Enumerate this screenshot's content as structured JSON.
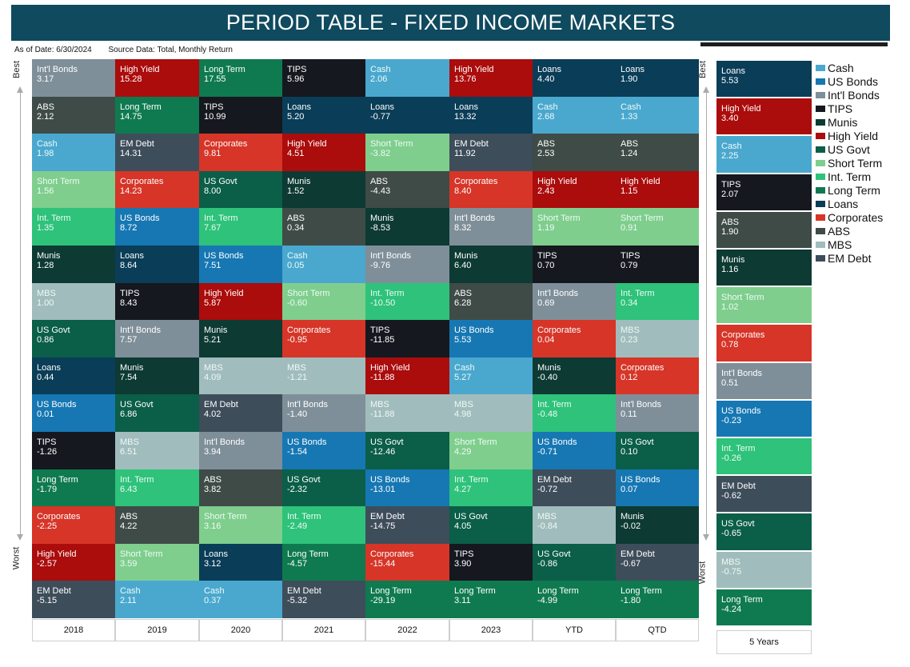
{
  "title": "PERIOD TABLE - FIXED INCOME MARKETS",
  "as_of": "As of Date: 6/30/2024",
  "source": "Source Data: Total, Monthly Return",
  "axis": {
    "best": "Best",
    "worst": "Worst"
  },
  "colors": {
    "Cash": "#4aa8cf",
    "US Bonds": "#1677b3",
    "Int'l Bonds": "#7f8f99",
    "TIPS": "#16181f",
    "Munis": "#0d3a33",
    "High Yield": "#ab0c0c",
    "US Govt": "#0b5e48",
    "Short Term": "#7fce8d",
    "Int. Term": "#2ec27a",
    "Long Term": "#0f7a4f",
    "Loans": "#0a3d57",
    "Corporates": "#d63528",
    "ABS": "#3f4b47",
    "MBS": "#a1bcbc",
    "EM Debt": "#3e4d5a"
  },
  "legend": [
    "Cash",
    "US Bonds",
    "Int'l Bonds",
    "TIPS",
    "Munis",
    "High Yield",
    "US Govt",
    "Short Term",
    "Int. Term",
    "Long Term",
    "Loans",
    "Corporates",
    "ABS",
    "MBS",
    "EM Debt"
  ],
  "chart_data": {
    "type": "table",
    "title": "PERIOD TABLE - FIXED INCOME MARKETS",
    "rank_order": "best-to-worst",
    "columns": [
      {
        "label": "2018",
        "ranking": [
          {
            "name": "Int'l Bonds",
            "value": "3.17"
          },
          {
            "name": "ABS",
            "value": "2.12"
          },
          {
            "name": "Cash",
            "value": "1.98"
          },
          {
            "name": "Short Term",
            "value": "1.56"
          },
          {
            "name": "Int. Term",
            "value": "1.35"
          },
          {
            "name": "Munis",
            "value": "1.28"
          },
          {
            "name": "MBS",
            "value": "1.00"
          },
          {
            "name": "US Govt",
            "value": "0.86"
          },
          {
            "name": "Loans",
            "value": "0.44"
          },
          {
            "name": "US Bonds",
            "value": "0.01"
          },
          {
            "name": "TIPS",
            "value": "-1.26"
          },
          {
            "name": "Long Term",
            "value": "-1.79"
          },
          {
            "name": "Corporates",
            "value": "-2.25"
          },
          {
            "name": "High Yield",
            "value": "-2.57"
          },
          {
            "name": "EM Debt",
            "value": "-5.15"
          }
        ]
      },
      {
        "label": "2019",
        "ranking": [
          {
            "name": "High Yield",
            "value": "15.28"
          },
          {
            "name": "Long Term",
            "value": "14.75"
          },
          {
            "name": "EM Debt",
            "value": "14.31"
          },
          {
            "name": "Corporates",
            "value": "14.23"
          },
          {
            "name": "US Bonds",
            "value": "8.72"
          },
          {
            "name": "Loans",
            "value": "8.64"
          },
          {
            "name": "TIPS",
            "value": "8.43"
          },
          {
            "name": "Int'l Bonds",
            "value": "7.57"
          },
          {
            "name": "Munis",
            "value": "7.54"
          },
          {
            "name": "US Govt",
            "value": "6.86"
          },
          {
            "name": "MBS",
            "value": "6.51"
          },
          {
            "name": "Int. Term",
            "value": "6.43"
          },
          {
            "name": "ABS",
            "value": "4.22"
          },
          {
            "name": "Short Term",
            "value": "3.59"
          },
          {
            "name": "Cash",
            "value": "2.11"
          }
        ]
      },
      {
        "label": "2020",
        "ranking": [
          {
            "name": "Long Term",
            "value": "17.55"
          },
          {
            "name": "TIPS",
            "value": "10.99"
          },
          {
            "name": "Corporates",
            "value": "9.81"
          },
          {
            "name": "US Govt",
            "value": "8.00"
          },
          {
            "name": "Int. Term",
            "value": "7.67"
          },
          {
            "name": "US Bonds",
            "value": "7.51"
          },
          {
            "name": "High Yield",
            "value": "5.87"
          },
          {
            "name": "Munis",
            "value": "5.21"
          },
          {
            "name": "MBS",
            "value": "4.09"
          },
          {
            "name": "EM Debt",
            "value": "4.02"
          },
          {
            "name": "Int'l Bonds",
            "value": "3.94"
          },
          {
            "name": "ABS",
            "value": "3.82"
          },
          {
            "name": "Short Term",
            "value": "3.16"
          },
          {
            "name": "Loans",
            "value": "3.12"
          },
          {
            "name": "Cash",
            "value": "0.37"
          }
        ]
      },
      {
        "label": "2021",
        "ranking": [
          {
            "name": "TIPS",
            "value": "5.96"
          },
          {
            "name": "Loans",
            "value": "5.20"
          },
          {
            "name": "High Yield",
            "value": "4.51"
          },
          {
            "name": "Munis",
            "value": "1.52"
          },
          {
            "name": "ABS",
            "value": "0.34"
          },
          {
            "name": "Cash",
            "value": "0.05"
          },
          {
            "name": "Short Term",
            "value": "-0.60"
          },
          {
            "name": "Corporates",
            "value": "-0.95"
          },
          {
            "name": "MBS",
            "value": "-1.21"
          },
          {
            "name": "Int'l Bonds",
            "value": "-1.40"
          },
          {
            "name": "US Bonds",
            "value": "-1.54"
          },
          {
            "name": "US Govt",
            "value": "-2.32"
          },
          {
            "name": "Int. Term",
            "value": "-2.49"
          },
          {
            "name": "Long Term",
            "value": "-4.57"
          },
          {
            "name": "EM Debt",
            "value": "-5.32"
          }
        ]
      },
      {
        "label": "2022",
        "ranking": [
          {
            "name": "Cash",
            "value": "2.06"
          },
          {
            "name": "Loans",
            "value": "-0.77"
          },
          {
            "name": "Short Term",
            "value": "-3.82"
          },
          {
            "name": "ABS",
            "value": "-4.43"
          },
          {
            "name": "Munis",
            "value": "-8.53"
          },
          {
            "name": "Int'l Bonds",
            "value": "-9.76"
          },
          {
            "name": "Int. Term",
            "value": "-10.50"
          },
          {
            "name": "TIPS",
            "value": "-11.85"
          },
          {
            "name": "High Yield",
            "value": "-11.88"
          },
          {
            "name": "MBS",
            "value": "-11.88"
          },
          {
            "name": "US Govt",
            "value": "-12.46"
          },
          {
            "name": "US Bonds",
            "value": "-13.01"
          },
          {
            "name": "EM Debt",
            "value": "-14.75"
          },
          {
            "name": "Corporates",
            "value": "-15.44"
          },
          {
            "name": "Long Term",
            "value": "-29.19"
          }
        ]
      },
      {
        "label": "2023",
        "ranking": [
          {
            "name": "High Yield",
            "value": "13.76"
          },
          {
            "name": "Loans",
            "value": "13.32"
          },
          {
            "name": "EM Debt",
            "value": "11.92"
          },
          {
            "name": "Corporates",
            "value": "8.40"
          },
          {
            "name": "Int'l Bonds",
            "value": "8.32"
          },
          {
            "name": "Munis",
            "value": "6.40"
          },
          {
            "name": "ABS",
            "value": "6.28"
          },
          {
            "name": "US Bonds",
            "value": "5.53"
          },
          {
            "name": "Cash",
            "value": "5.27"
          },
          {
            "name": "MBS",
            "value": "4.98"
          },
          {
            "name": "Short Term",
            "value": "4.29"
          },
          {
            "name": "Int. Term",
            "value": "4.27"
          },
          {
            "name": "US Govt",
            "value": "4.05"
          },
          {
            "name": "TIPS",
            "value": "3.90"
          },
          {
            "name": "Long Term",
            "value": "3.11"
          }
        ]
      },
      {
        "label": "YTD",
        "ranking": [
          {
            "name": "Loans",
            "value": "4.40"
          },
          {
            "name": "Cash",
            "value": "2.68"
          },
          {
            "name": "ABS",
            "value": "2.53"
          },
          {
            "name": "High Yield",
            "value": "2.43"
          },
          {
            "name": "Short Term",
            "value": "1.19"
          },
          {
            "name": "TIPS",
            "value": "0.70"
          },
          {
            "name": "Int'l Bonds",
            "value": "0.69"
          },
          {
            "name": "Corporates",
            "value": "0.04"
          },
          {
            "name": "Munis",
            "value": "-0.40"
          },
          {
            "name": "Int. Term",
            "value": "-0.48"
          },
          {
            "name": "US Bonds",
            "value": "-0.71"
          },
          {
            "name": "EM Debt",
            "value": "-0.72"
          },
          {
            "name": "MBS",
            "value": "-0.84"
          },
          {
            "name": "US Govt",
            "value": "-0.86"
          },
          {
            "name": "Long Term",
            "value": "-4.99"
          }
        ]
      },
      {
        "label": "QTD",
        "ranking": [
          {
            "name": "Loans",
            "value": "1.90"
          },
          {
            "name": "Cash",
            "value": "1.33"
          },
          {
            "name": "ABS",
            "value": "1.24"
          },
          {
            "name": "High Yield",
            "value": "1.15"
          },
          {
            "name": "Short Term",
            "value": "0.91"
          },
          {
            "name": "TIPS",
            "value": "0.79"
          },
          {
            "name": "Int. Term",
            "value": "0.34"
          },
          {
            "name": "MBS",
            "value": "0.23"
          },
          {
            "name": "Corporates",
            "value": "0.12"
          },
          {
            "name": "Int'l Bonds",
            "value": "0.11"
          },
          {
            "name": "US Govt",
            "value": "0.10"
          },
          {
            "name": "US Bonds",
            "value": "0.07"
          },
          {
            "name": "Munis",
            "value": "-0.02"
          },
          {
            "name": "EM Debt",
            "value": "-0.67"
          },
          {
            "name": "Long Term",
            "value": "-1.80"
          }
        ]
      }
    ],
    "five_year": {
      "label": "5 Years",
      "ranking": [
        {
          "name": "Loans",
          "value": "5.53"
        },
        {
          "name": "High Yield",
          "value": "3.40"
        },
        {
          "name": "Cash",
          "value": "2.25"
        },
        {
          "name": "TIPS",
          "value": "2.07"
        },
        {
          "name": "ABS",
          "value": "1.90"
        },
        {
          "name": "Munis",
          "value": "1.16"
        },
        {
          "name": "Short Term",
          "value": "1.02"
        },
        {
          "name": "Corporates",
          "value": "0.78"
        },
        {
          "name": "Int'l Bonds",
          "value": "0.51"
        },
        {
          "name": "US Bonds",
          "value": "-0.23"
        },
        {
          "name": "Int. Term",
          "value": "-0.26"
        },
        {
          "name": "EM Debt",
          "value": "-0.62"
        },
        {
          "name": "US Govt",
          "value": "-0.65"
        },
        {
          "name": "MBS",
          "value": "-0.75"
        },
        {
          "name": "Long Term",
          "value": "-4.24"
        }
      ]
    }
  }
}
